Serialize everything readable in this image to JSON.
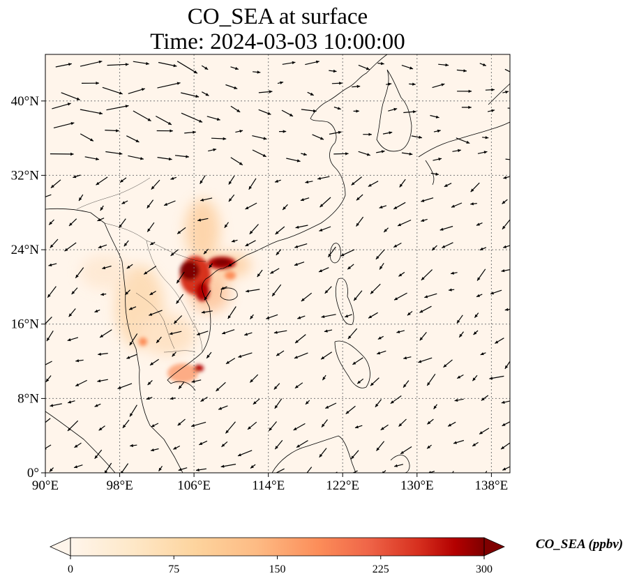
{
  "title": {
    "line1": "CO_SEA at surface",
    "line2": "Time: 2024-03-03 10:00:00"
  },
  "map": {
    "x_ticks": [
      "90°E",
      "98°E",
      "106°E",
      "114°E",
      "122°E",
      "130°E",
      "138°E"
    ],
    "y_ticks": [
      "0°",
      "8°N",
      "16°N",
      "24°N",
      "32°N",
      "40°N"
    ],
    "grid": true,
    "background_color": "#fff5eb",
    "vectors": "wind vectors",
    "plumes": [
      {
        "lon": 104.8,
        "lat": 21.8,
        "value": 300
      },
      {
        "lon": 108.5,
        "lat": 22.5,
        "value": 300
      },
      {
        "lon": 106.0,
        "lat": 19.6,
        "value": 280
      },
      {
        "lon": 106.0,
        "lat": 25.5,
        "value": 90
      },
      {
        "lon": 101.0,
        "lat": 17.0,
        "value": 90
      },
      {
        "lon": 104.0,
        "lat": 14.0,
        "value": 70
      },
      {
        "lon": 105.5,
        "lat": 10.8,
        "value": 180
      },
      {
        "lon": 96.0,
        "lat": 21.0,
        "value": 50
      }
    ]
  },
  "colorbar": {
    "label": "CO_SEA (ppbv)",
    "ticks": [
      "0",
      "75",
      "150",
      "225",
      "300"
    ],
    "colormap": "OrRd",
    "colors": [
      "#fff5eb",
      "#fdd49e",
      "#fdbb84",
      "#fc8d59",
      "#ef6548",
      "#d7301f",
      "#b30000",
      "#7f0000"
    ],
    "extend": "both"
  }
}
